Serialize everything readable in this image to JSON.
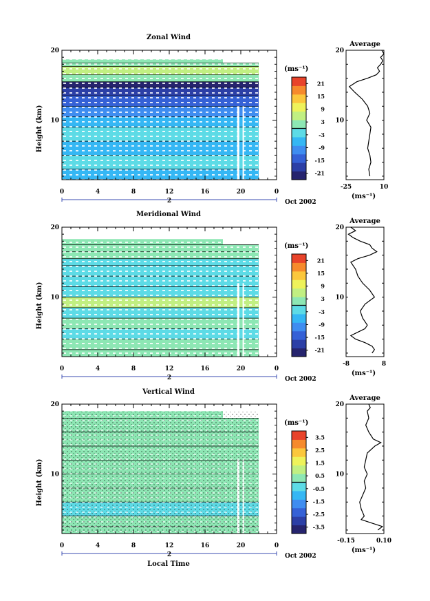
{
  "chart_data": [
    {
      "type": "heatmap",
      "title": "Zonal Wind",
      "xlabel": "",
      "ylabel": "Height (km)",
      "xlim": [
        0,
        24
      ],
      "ylim": [
        1.5,
        20
      ],
      "xticks": [
        "0",
        "4",
        "8",
        "12",
        "16",
        "20",
        "0"
      ],
      "yticks": [
        "10",
        "20"
      ],
      "date_label": "Oct 2002",
      "day_label": "2",
      "colorbar": {
        "unit": "(ms⁻¹)",
        "ticks": [
          "21",
          "15",
          "9",
          "3",
          "-3",
          "-9",
          "-15",
          "-21"
        ],
        "range": [
          -24,
          24
        ]
      },
      "bands": [
        {
          "y0": 1.5,
          "y1": 3,
          "v": -6
        },
        {
          "y0": 3,
          "y1": 5,
          "v": -3
        },
        {
          "y0": 5,
          "y1": 7,
          "v": -6
        },
        {
          "y0": 7,
          "y1": 9,
          "v": -4
        },
        {
          "y0": 9,
          "y1": 10.5,
          "v": -5
        },
        {
          "y0": 10.5,
          "y1": 12,
          "v": -9
        },
        {
          "y0": 12,
          "y1": 13.5,
          "v": -15
        },
        {
          "y0": 13.5,
          "y1": 14.7,
          "v": -19
        },
        {
          "y0": 14.7,
          "y1": 15.5,
          "v": -22
        },
        {
          "y0": 15.5,
          "y1": 16.5,
          "v": 0
        },
        {
          "y0": 16.5,
          "y1": 17.7,
          "v": 6
        },
        {
          "y0": 17.7,
          "y1": 18.2,
          "v": 3
        },
        {
          "y0": 18.2,
          "y1": 18.7,
          "v": 1
        }
      ],
      "profile": {
        "xlim": [
          -25,
          10
        ],
        "xticks": [
          "-25",
          "10"
        ],
        "title": "Average",
        "unit": "(ms⁻¹)",
        "heights": [
          2,
          3,
          4,
          5,
          6,
          7,
          8,
          9,
          10,
          11,
          12,
          13,
          14,
          14.8,
          15.5,
          16,
          16.5,
          17,
          17.5,
          18,
          18.5,
          19,
          19.5,
          20
        ],
        "values": [
          -3,
          -4,
          -2,
          -3,
          -5,
          -4,
          -3,
          -2,
          -6,
          -3,
          -5,
          -10,
          -17,
          -22,
          -15,
          -5,
          3,
          6,
          4,
          7,
          9,
          7,
          10,
          8
        ]
      }
    },
    {
      "type": "heatmap",
      "title": "Meridional Wind",
      "xlabel": "",
      "ylabel": "Height (km)",
      "xlim": [
        0,
        24
      ],
      "ylim": [
        1.5,
        20
      ],
      "xticks": [
        "0",
        "4",
        "8",
        "12",
        "16",
        "20",
        "0"
      ],
      "yticks": [
        "10",
        "20"
      ],
      "date_label": "Oct 2002",
      "day_label": "2",
      "colorbar": {
        "unit": "(ms⁻¹)",
        "ticks": [
          "21",
          "15",
          "9",
          "3",
          "-3",
          "-9",
          "-15",
          "-21"
        ],
        "range": [
          -24,
          24
        ]
      },
      "bands": [
        {
          "y0": 1.5,
          "y1": 2.5,
          "v": 0
        },
        {
          "y0": 2.5,
          "y1": 4,
          "v": 2
        },
        {
          "y0": 4,
          "y1": 5.5,
          "v": -1
        },
        {
          "y0": 5.5,
          "y1": 7,
          "v": 1
        },
        {
          "y0": 7,
          "y1": 8.5,
          "v": -2
        },
        {
          "y0": 8.5,
          "y1": 10,
          "v": 4
        },
        {
          "y0": 10,
          "y1": 11.5,
          "v": -1
        },
        {
          "y0": 11.5,
          "y1": 13,
          "v": -4
        },
        {
          "y0": 13,
          "y1": 14.5,
          "v": -3
        },
        {
          "y0": 14.5,
          "y1": 15.5,
          "v": -4
        },
        {
          "y0": 15.5,
          "y1": 16.5,
          "v": 3
        },
        {
          "y0": 16.5,
          "y1": 17.5,
          "v": 0
        },
        {
          "y0": 17.5,
          "y1": 18.3,
          "v": 1
        }
      ],
      "profile": {
        "xlim": [
          -8,
          8
        ],
        "xticks": [
          "-8",
          "8"
        ],
        "title": "Average",
        "unit": "(ms⁻¹)",
        "heights": [
          2,
          2.5,
          3,
          3.5,
          4,
          4.5,
          5,
          5.5,
          6,
          7,
          8,
          9,
          10,
          11,
          12,
          13,
          14,
          15,
          15.5,
          16,
          16.5,
          17,
          17.5,
          18,
          18.5,
          19,
          19.5,
          20
        ],
        "values": [
          3,
          4,
          3,
          0,
          -4,
          -6,
          -3,
          0,
          1,
          -1,
          -2,
          0,
          4,
          2,
          -1,
          -3,
          -4,
          -6,
          -3,
          2,
          5,
          3,
          2,
          -2,
          -5,
          -7,
          -4,
          -6
        ]
      }
    },
    {
      "type": "heatmap",
      "title": "Vertical Wind",
      "xlabel": "Local Time",
      "ylabel": "Height (km)",
      "xlim": [
        0,
        24
      ],
      "ylim": [
        1.5,
        20
      ],
      "xticks": [
        "0",
        "4",
        "8",
        "12",
        "16",
        "20",
        "0"
      ],
      "yticks": [
        "10",
        "20"
      ],
      "date_label": "Oct 2002",
      "day_label": "2",
      "colorbar": {
        "unit": "(ms⁻¹)",
        "ticks": [
          "3.5",
          "2.5",
          "1.5",
          "0.5",
          "-0.5",
          "-1.5",
          "-2.5",
          "-3.5"
        ],
        "range": [
          -4,
          4
        ]
      },
      "bands": [
        {
          "y0": 1.5,
          "y1": 2.5,
          "v": 0.5
        },
        {
          "y0": 2.5,
          "y1": 4,
          "v": 0.2
        },
        {
          "y0": 4,
          "y1": 6,
          "v": -0.3
        },
        {
          "y0": 6,
          "y1": 8,
          "v": 0.1
        },
        {
          "y0": 8,
          "y1": 10,
          "v": 0.3
        },
        {
          "y0": 10,
          "y1": 12,
          "v": 0.2
        },
        {
          "y0": 12,
          "y1": 14,
          "v": 0.4
        },
        {
          "y0": 14,
          "y1": 16,
          "v": 0.1
        },
        {
          "y0": 16,
          "y1": 18,
          "v": 0.3
        },
        {
          "y0": 18,
          "y1": 19,
          "v": 0.4
        }
      ],
      "profile": {
        "xlim": [
          -0.15,
          0.1
        ],
        "xticks": [
          "-0.15",
          "0.10"
        ],
        "title": "Average",
        "unit": "(ms⁻¹)",
        "heights": [
          2,
          2.5,
          3,
          3.5,
          4,
          5,
          6,
          7,
          8,
          9,
          10,
          11,
          12,
          13,
          14,
          14.5,
          15,
          16,
          17,
          18,
          19,
          19.5,
          20
        ],
        "values": [
          0.06,
          0.09,
          0.02,
          -0.05,
          -0.03,
          -0.05,
          -0.06,
          -0.04,
          -0.02,
          -0.03,
          -0.01,
          -0.03,
          -0.02,
          -0.01,
          0.04,
          0.08,
          0.03,
          0.0,
          -0.02,
          0.0,
          -0.01,
          0.01,
          0.0
        ]
      }
    }
  ]
}
